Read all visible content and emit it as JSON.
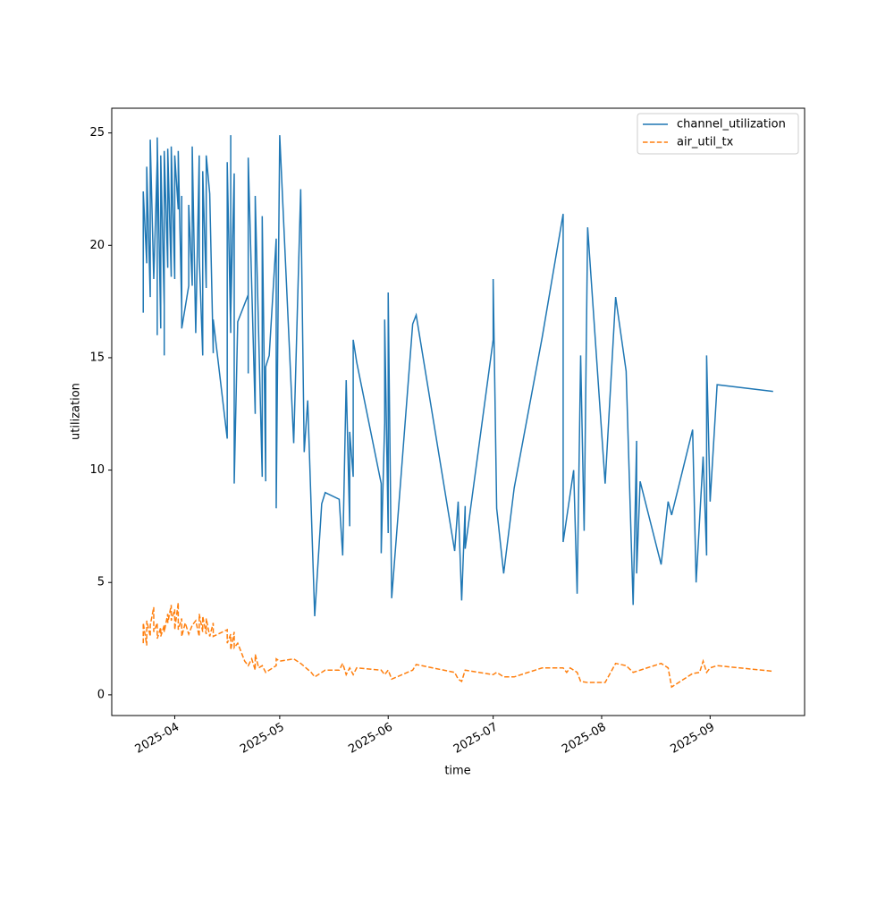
{
  "chart_data": {
    "type": "line",
    "xlabel": "time",
    "ylabel": "utilization",
    "xlim": [
      "2025-03-14",
      "2025-09-28"
    ],
    "xticks": [
      {
        "value": "2025-04-01",
        "label": "2025-04"
      },
      {
        "value": "2025-05-01",
        "label": "2025-05"
      },
      {
        "value": "2025-06-01",
        "label": "2025-06"
      },
      {
        "value": "2025-07-01",
        "label": "2025-07"
      },
      {
        "value": "2025-08-01",
        "label": "2025-08"
      },
      {
        "value": "2025-09-01",
        "label": "2025-09"
      }
    ],
    "ylim": [
      -0.92,
      26.1
    ],
    "yticks": [
      0,
      5,
      10,
      15,
      20,
      25
    ],
    "grid": false,
    "legend": "upper right",
    "series": [
      {
        "name": "channel_utilization",
        "color": "#1f77b4",
        "linestyle": "solid",
        "x": [
          "2025-03-23",
          "2025-03-23",
          "2025-03-24",
          "2025-03-24",
          "2025-03-25",
          "2025-03-25",
          "2025-03-26",
          "2025-03-27",
          "2025-03-27",
          "2025-03-27",
          "2025-03-28",
          "2025-03-28",
          "2025-03-29",
          "2025-03-29",
          "2025-03-29",
          "2025-03-30",
          "2025-03-30",
          "2025-03-31",
          "2025-03-31",
          "2025-04-01",
          "2025-04-01",
          "2025-04-02",
          "2025-04-02",
          "2025-04-03",
          "2025-04-03",
          "2025-04-03",
          "2025-04-05",
          "2025-04-05",
          "2025-04-06",
          "2025-04-06",
          "2025-04-07",
          "2025-04-08",
          "2025-04-08",
          "2025-04-09",
          "2025-04-09",
          "2025-04-10",
          "2025-04-10",
          "2025-04-11",
          "2025-04-12",
          "2025-04-12",
          "2025-04-16",
          "2025-04-16",
          "2025-04-17",
          "2025-04-17",
          "2025-04-17",
          "2025-04-18",
          "2025-04-18",
          "2025-04-19",
          "2025-04-22",
          "2025-04-22",
          "2025-04-22",
          "2025-04-24",
          "2025-04-24",
          "2025-04-26",
          "2025-04-26",
          "2025-04-27",
          "2025-04-27",
          "2025-04-28",
          "2025-04-30",
          "2025-04-30",
          "2025-05-01",
          "2025-05-05",
          "2025-05-07",
          "2025-05-08",
          "2025-05-09",
          "2025-05-11",
          "2025-05-12",
          "2025-05-13",
          "2025-05-14",
          "2025-05-18",
          "2025-05-19",
          "2025-05-20",
          "2025-05-21",
          "2025-05-21",
          "2025-05-22",
          "2025-05-22",
          "2025-05-23",
          "2025-05-30",
          "2025-05-30",
          "2025-05-31",
          "2025-05-31",
          "2025-06-01",
          "2025-06-01",
          "2025-06-02",
          "2025-06-08",
          "2025-06-09",
          "2025-06-20",
          "2025-06-21",
          "2025-06-22",
          "2025-06-23",
          "2025-06-23",
          "2025-07-01",
          "2025-07-01",
          "2025-07-02",
          "2025-07-04",
          "2025-07-07",
          "2025-07-15",
          "2025-07-21",
          "2025-07-21",
          "2025-07-24",
          "2025-07-25",
          "2025-07-26",
          "2025-07-27",
          "2025-07-28",
          "2025-08-02",
          "2025-08-05",
          "2025-08-08",
          "2025-08-10",
          "2025-08-11",
          "2025-08-11",
          "2025-08-12",
          "2025-08-18",
          "2025-08-20",
          "2025-08-21",
          "2025-08-27",
          "2025-08-28",
          "2025-08-30",
          "2025-08-31",
          "2025-08-31",
          "2025-09-01",
          "2025-09-03",
          "2025-09-19"
        ],
        "values": [
          17,
          22.4,
          19.2,
          23.5,
          17.7,
          24.7,
          18.5,
          23.8,
          16,
          24.8,
          16.3,
          24,
          17.3,
          15.1,
          24.2,
          19,
          24.3,
          18.6,
          24.4,
          18.5,
          24,
          21.6,
          24.2,
          17.1,
          22.2,
          16.3,
          18.2,
          21.8,
          18.2,
          24.4,
          16.1,
          24,
          19.5,
          15.1,
          23.3,
          18.1,
          24,
          22.3,
          15.2,
          16.7,
          11.4,
          23.7,
          16.1,
          24.9,
          16.9,
          23.2,
          9.4,
          16.6,
          17.8,
          14.3,
          23.9,
          12.5,
          22.2,
          9.7,
          21.3,
          9.5,
          14.6,
          15.1,
          20.3,
          8.3,
          24.9,
          11.2,
          22.5,
          10.8,
          13.1,
          3.5,
          6,
          8.5,
          9,
          8.7,
          6.2,
          14,
          7.5,
          11.7,
          9.7,
          15.8,
          14.8,
          9.4,
          6.3,
          12.1,
          16.7,
          7.2,
          17.9,
          4.3,
          16.5,
          16.9,
          6.4,
          8.6,
          4.2,
          8.4,
          6.5,
          15.8,
          18.5,
          8.3,
          5.4,
          9.2,
          15.9,
          21.4,
          6.8,
          10,
          4.5,
          15.1,
          7.3,
          20.8,
          9.4,
          17.7,
          14.4,
          4,
          11.3,
          5.4,
          9.5,
          5.8,
          8.6,
          8,
          11.8,
          5,
          10.6,
          6.2,
          15.1,
          8.6,
          13.8,
          13.5
        ]
      },
      {
        "name": "air_util_tx",
        "color": "#ff7f0e",
        "linestyle": "dashed",
        "x": [
          "2025-03-23",
          "2025-03-23",
          "2025-03-24",
          "2025-03-24",
          "2025-03-25",
          "2025-03-25",
          "2025-03-26",
          "2025-03-26",
          "2025-03-27",
          "2025-03-27",
          "2025-03-28",
          "2025-03-28",
          "2025-03-29",
          "2025-03-29",
          "2025-03-30",
          "2025-03-30",
          "2025-03-31",
          "2025-03-31",
          "2025-04-01",
          "2025-04-01",
          "2025-04-02",
          "2025-04-02",
          "2025-04-03",
          "2025-04-03",
          "2025-04-04",
          "2025-04-05",
          "2025-04-06",
          "2025-04-07",
          "2025-04-08",
          "2025-04-08",
          "2025-04-09",
          "2025-04-09",
          "2025-04-10",
          "2025-04-10",
          "2025-04-11",
          "2025-04-12",
          "2025-04-12",
          "2025-04-16",
          "2025-04-16",
          "2025-04-17",
          "2025-04-17",
          "2025-04-18",
          "2025-04-18",
          "2025-04-19",
          "2025-04-20",
          "2025-04-21",
          "2025-04-22",
          "2025-04-23",
          "2025-04-24",
          "2025-04-24",
          "2025-04-25",
          "2025-04-26",
          "2025-04-27",
          "2025-04-28",
          "2025-04-30",
          "2025-04-30",
          "2025-05-01",
          "2025-05-05",
          "2025-05-07",
          "2025-05-10",
          "2025-05-11",
          "2025-05-13",
          "2025-05-14",
          "2025-05-18",
          "2025-05-19",
          "2025-05-20",
          "2025-05-21",
          "2025-05-22",
          "2025-05-23",
          "2025-05-30",
          "2025-05-31",
          "2025-06-01",
          "2025-06-02",
          "2025-06-08",
          "2025-06-09",
          "2025-06-20",
          "2025-06-21",
          "2025-06-22",
          "2025-06-23",
          "2025-07-01",
          "2025-07-02",
          "2025-07-04",
          "2025-07-07",
          "2025-07-15",
          "2025-07-21",
          "2025-07-22",
          "2025-07-23",
          "2025-07-25",
          "2025-07-26",
          "2025-07-28",
          "2025-08-02",
          "2025-08-05",
          "2025-08-08",
          "2025-08-10",
          "2025-08-12",
          "2025-08-18",
          "2025-08-20",
          "2025-08-21",
          "2025-08-27",
          "2025-08-29",
          "2025-08-30",
          "2025-08-31",
          "2025-09-01",
          "2025-09-03",
          "2025-09-19"
        ],
        "values": [
          2.3,
          3.2,
          2.2,
          3.3,
          2.6,
          3.1,
          3.9,
          2.8,
          3.2,
          2.5,
          3,
          2.6,
          3.1,
          2.8,
          3.6,
          3.2,
          4,
          3.3,
          3.8,
          2.9,
          4.1,
          2.9,
          3.4,
          2.6,
          3.2,
          2.7,
          3.1,
          3.3,
          2.6,
          3.6,
          2.8,
          3.5,
          2.7,
          3.4,
          2.6,
          3.2,
          2.6,
          2.9,
          2.3,
          2.7,
          2,
          2.8,
          2.1,
          2.3,
          1.9,
          1.5,
          1.3,
          1.6,
          1.1,
          1.8,
          1.2,
          1.3,
          1,
          1.1,
          1.3,
          1.6,
          1.5,
          1.6,
          1.4,
          1,
          0.8,
          1,
          1.1,
          1.1,
          1.4,
          0.9,
          1.2,
          0.9,
          1.2,
          1.1,
          0.9,
          1.1,
          0.7,
          1.1,
          1.35,
          1,
          0.7,
          0.6,
          1.1,
          0.9,
          1,
          0.8,
          0.8,
          1.2,
          1.2,
          1,
          1.2,
          1,
          0.6,
          0.55,
          0.55,
          1.4,
          1.3,
          1,
          1.1,
          1.4,
          1.2,
          0.35,
          0.95,
          1,
          1.5,
          1,
          1.2,
          1.3,
          1.05
        ]
      }
    ]
  }
}
